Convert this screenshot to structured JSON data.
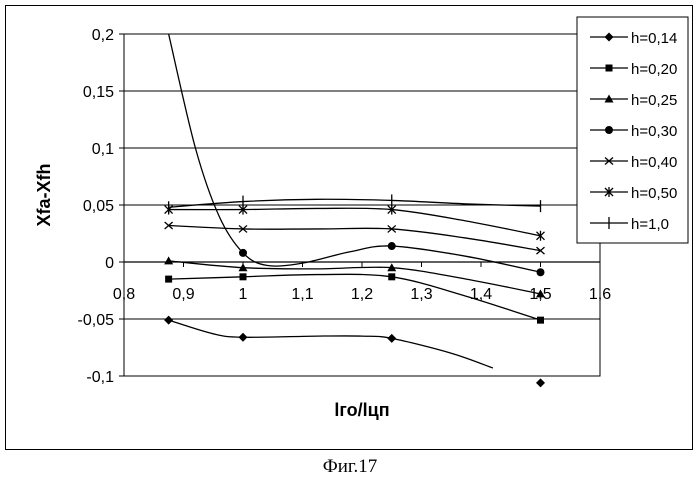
{
  "caption": "Фиг.17",
  "chart_data": {
    "type": "line",
    "xlabel": "lго/lцп",
    "ylabel": "Xfa-Xfh",
    "xlim": [
      0.8,
      1.6
    ],
    "ylim": [
      -0.1,
      0.2
    ],
    "x_ticks": [
      "0,8",
      "0,9",
      "1",
      "1,1",
      "1,2",
      "1,3",
      "1,4",
      "1,5",
      "1,6"
    ],
    "y_ticks": [
      "0,2",
      "0,15",
      "0,1",
      "0,05",
      "0",
      "-0,05",
      "-0,1"
    ],
    "grid": "horizontal",
    "legend_position": "right",
    "series": [
      {
        "name": "h=0,14",
        "marker": "diamond",
        "x": [
          0.875,
          1.0,
          1.25,
          1.5
        ],
        "y": [
          -0.051,
          -0.066,
          -0.067,
          -0.106
        ],
        "curve": [
          [
            0.875,
            -0.051
          ],
          [
            0.95,
            -0.063
          ],
          [
            1.0,
            -0.066
          ],
          [
            1.125,
            -0.065
          ],
          [
            1.2,
            -0.065
          ],
          [
            1.25,
            -0.067
          ],
          [
            1.35,
            -0.08
          ],
          [
            1.42,
            -0.093
          ]
        ]
      },
      {
        "name": "h=0,20",
        "marker": "square",
        "x": [
          0.875,
          1.0,
          1.25,
          1.5
        ],
        "y": [
          -0.015,
          -0.013,
          -0.013,
          -0.051
        ],
        "curve": [
          [
            0.875,
            -0.015
          ],
          [
            1.0,
            -0.013
          ],
          [
            1.125,
            -0.011
          ],
          [
            1.25,
            -0.013
          ],
          [
            1.375,
            -0.03
          ],
          [
            1.5,
            -0.051
          ]
        ]
      },
      {
        "name": "h=0,25",
        "marker": "triangle",
        "x": [
          0.875,
          1.0,
          1.25,
          1.5
        ],
        "y": [
          0.001,
          -0.005,
          -0.005,
          -0.028
        ],
        "curve": [
          [
            0.875,
            0.001
          ],
          [
            1.0,
            -0.005
          ],
          [
            1.125,
            -0.006
          ],
          [
            1.25,
            -0.005
          ],
          [
            1.375,
            -0.015
          ],
          [
            1.5,
            -0.028
          ]
        ]
      },
      {
        "name": "h=0,30",
        "marker": "circle",
        "x": [
          1.0,
          1.25,
          1.5
        ],
        "y": [
          0.008,
          0.014,
          -0.009
        ],
        "curve": [
          [
            0.875,
            0.2
          ],
          [
            0.92,
            0.1
          ],
          [
            0.96,
            0.04
          ],
          [
            1.0,
            0.008
          ],
          [
            1.04,
            -0.003
          ],
          [
            1.1,
            -0.001
          ],
          [
            1.18,
            0.009
          ],
          [
            1.25,
            0.014
          ],
          [
            1.375,
            0.005
          ],
          [
            1.5,
            -0.009
          ]
        ]
      },
      {
        "name": "h=0,40",
        "marker": "x",
        "x": [
          0.875,
          1.0,
          1.25,
          1.5
        ],
        "y": [
          0.032,
          0.029,
          0.029,
          0.01
        ],
        "curve": [
          [
            0.875,
            0.032
          ],
          [
            1.0,
            0.029
          ],
          [
            1.125,
            0.029
          ],
          [
            1.25,
            0.029
          ],
          [
            1.375,
            0.021
          ],
          [
            1.5,
            0.01
          ]
        ]
      },
      {
        "name": "h=0,50",
        "marker": "asterisk",
        "x": [
          0.875,
          1.0,
          1.25,
          1.5
        ],
        "y": [
          0.046,
          0.046,
          0.046,
          0.023
        ],
        "curve": [
          [
            0.875,
            0.046
          ],
          [
            1.0,
            0.046
          ],
          [
            1.125,
            0.047
          ],
          [
            1.25,
            0.046
          ],
          [
            1.375,
            0.036
          ],
          [
            1.5,
            0.023
          ]
        ]
      },
      {
        "name": "h=1,0",
        "marker": "plus",
        "x": [
          0.875,
          1.0,
          1.25,
          1.5
        ],
        "y": [
          0.048,
          0.053,
          0.054,
          0.049
        ],
        "curve": [
          [
            0.875,
            0.048
          ],
          [
            1.0,
            0.053
          ],
          [
            1.125,
            0.055
          ],
          [
            1.25,
            0.054
          ],
          [
            1.375,
            0.051
          ],
          [
            1.5,
            0.049
          ]
        ]
      }
    ]
  }
}
